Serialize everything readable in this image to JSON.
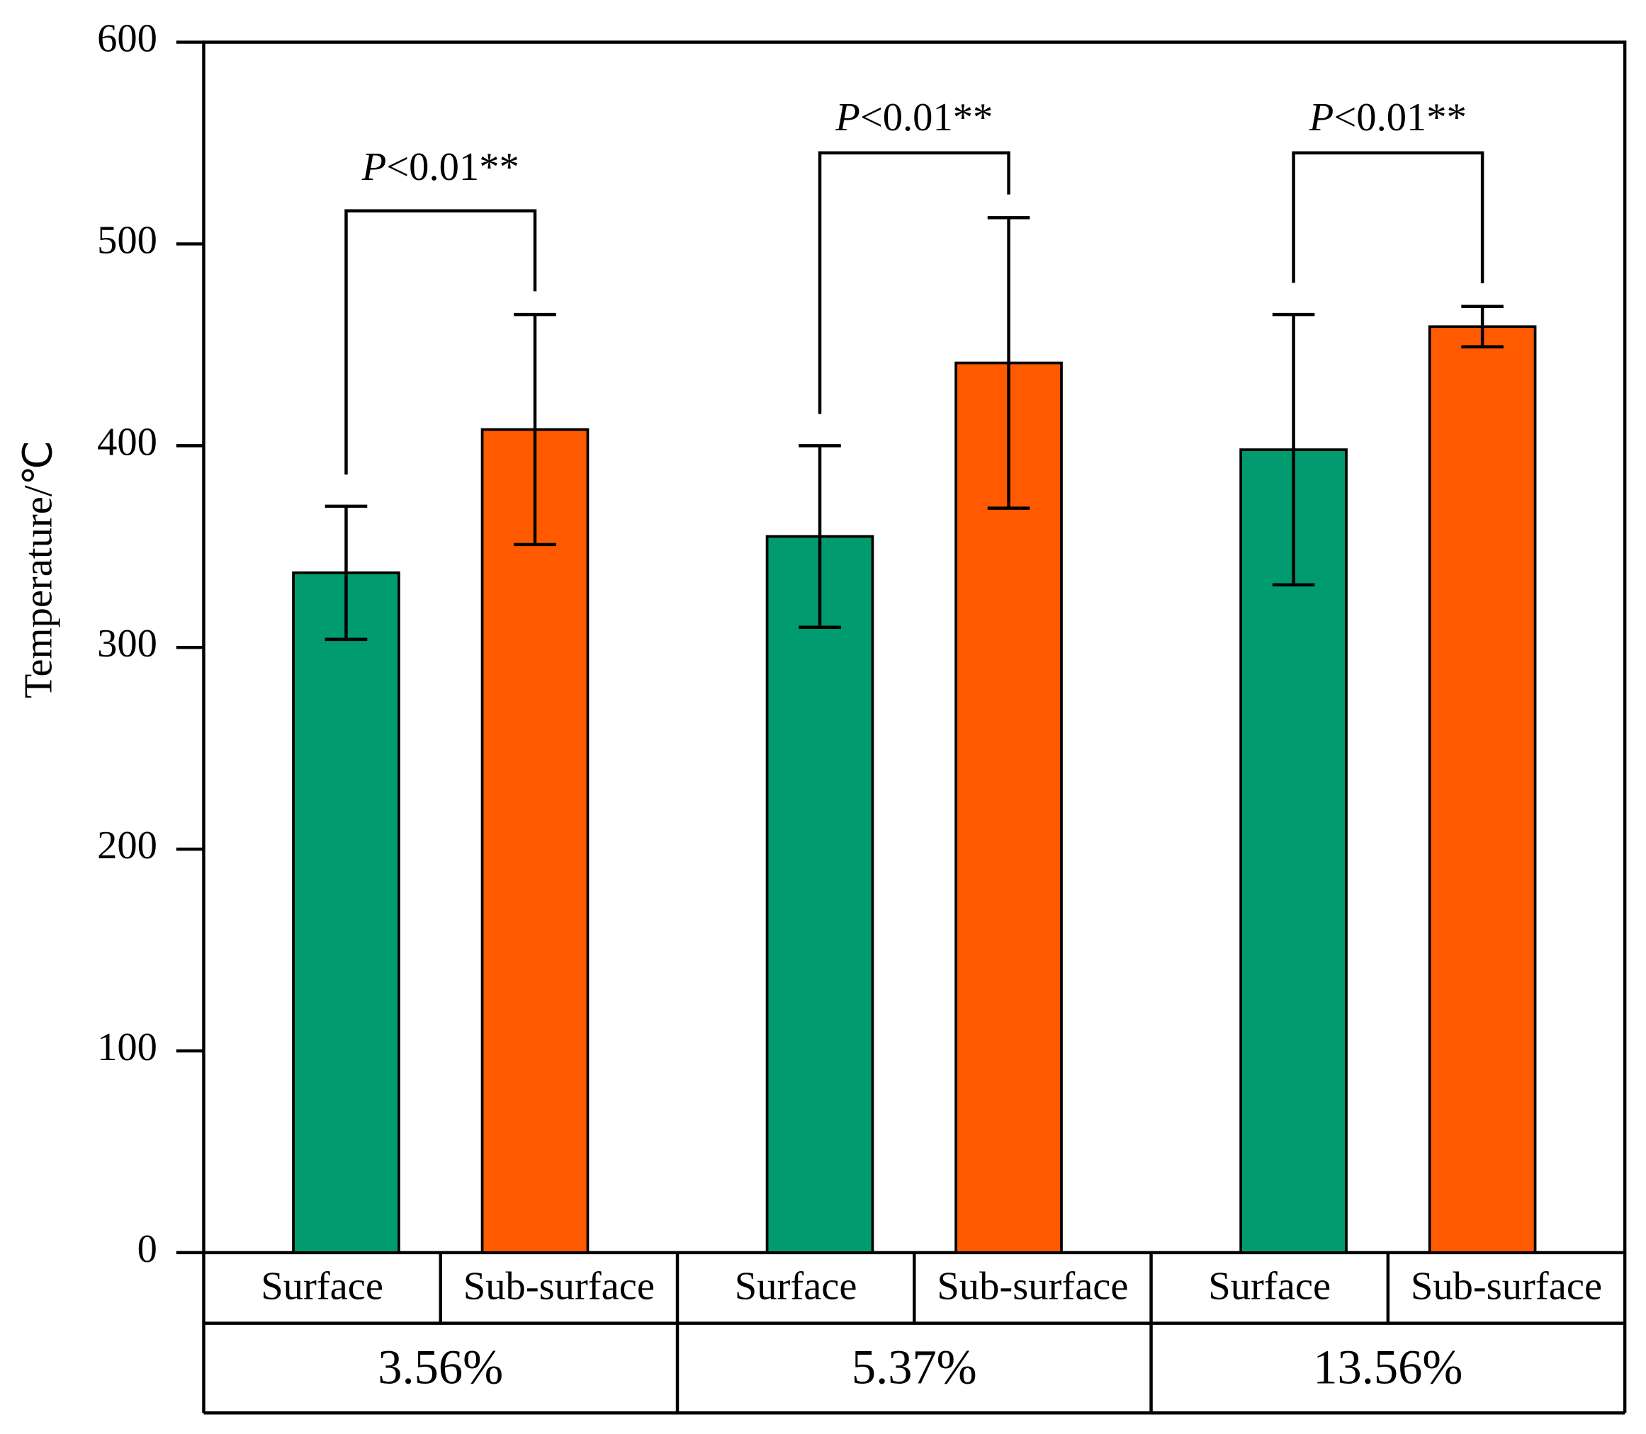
{
  "chart_data": {
    "type": "bar",
    "ylabel": "Temperature/℃",
    "categories": [
      "3.56%",
      "5.37%",
      "13.56%"
    ],
    "series": [
      {
        "name": "Surface",
        "color": "#009b6e",
        "values": [
          337,
          355,
          398
        ],
        "errors": [
          33,
          45,
          67
        ]
      },
      {
        "name": "Sub-surface",
        "color": "#ff5a00",
        "values": [
          408,
          441,
          459
        ],
        "errors": [
          57,
          72,
          10
        ]
      }
    ],
    "annotations": [
      "P<0.01**",
      "P<0.01**",
      "P<0.01**"
    ],
    "ylim": [
      0,
      600
    ],
    "yticks": [
      0,
      100,
      200,
      300,
      400,
      500,
      600
    ]
  }
}
